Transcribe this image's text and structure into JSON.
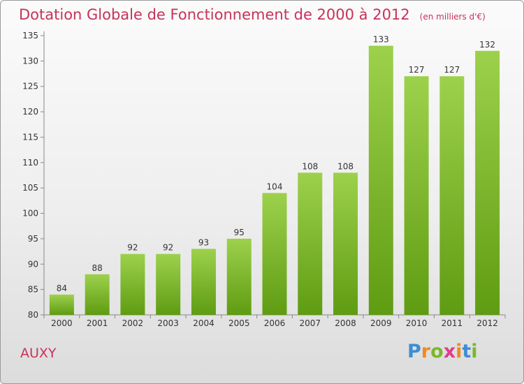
{
  "title": "Dotation Globale de Fonctionnement de 2000 à 2012",
  "subtitle": "(en milliers d'€)",
  "commune": "AUXY",
  "logo": {
    "letters": [
      "P",
      "r",
      "o",
      "x",
      "i",
      "t",
      "i"
    ],
    "colors": [
      "#3a8fd6",
      "#f28a1d",
      "#7ab828",
      "#e23c8c",
      "#f28a1d",
      "#3a8fd6",
      "#7ab828"
    ]
  },
  "colors": {
    "bar_light": "#9dd14c",
    "bar_dark": "#5f9c12",
    "title": "#c8325a"
  },
  "chart_data": {
    "type": "bar",
    "title": "Dotation Globale de Fonctionnement de 2000 à 2012",
    "subtitle": "(en milliers d'€)",
    "categories": [
      "2000",
      "2001",
      "2002",
      "2003",
      "2004",
      "2005",
      "2006",
      "2007",
      "2008",
      "2009",
      "2010",
      "2011",
      "2012"
    ],
    "values": [
      84,
      88,
      92,
      92,
      93,
      95,
      104,
      108,
      108,
      133,
      127,
      127,
      132
    ],
    "ylim": [
      80,
      135
    ],
    "yticks": [
      80,
      85,
      90,
      95,
      100,
      105,
      110,
      115,
      120,
      125,
      130,
      135
    ],
    "grid": false,
    "legend": "none"
  }
}
